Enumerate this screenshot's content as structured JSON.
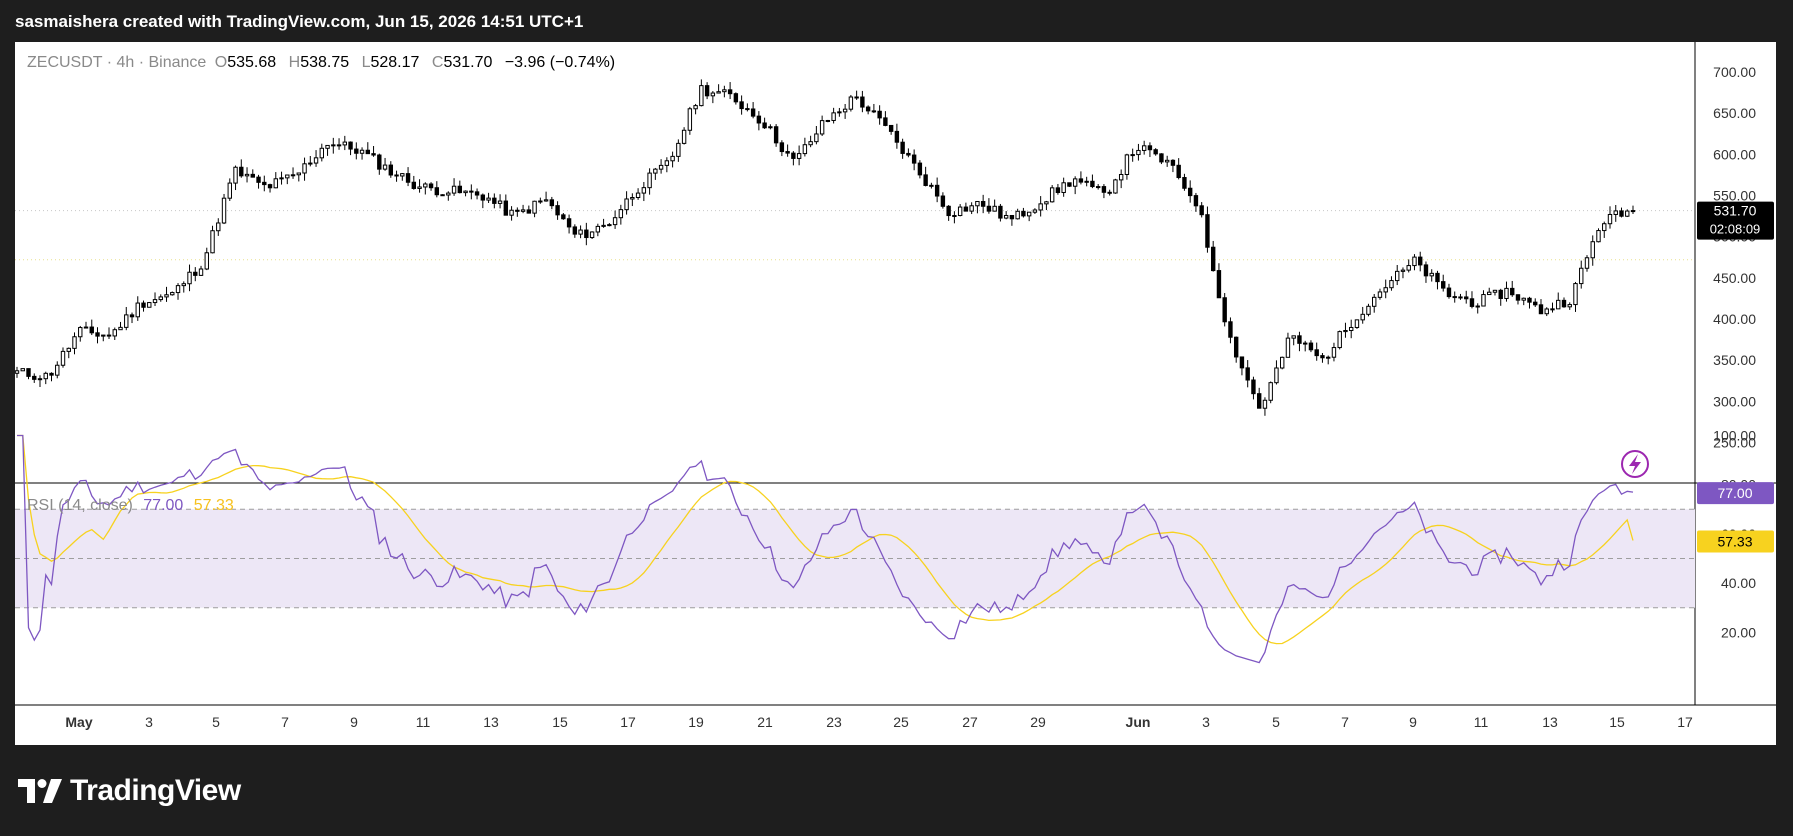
{
  "header": {
    "text": "sasmaishera created with TradingView.com, Jun 15, 2026 14:51 UTC+1"
  },
  "legend": {
    "symbol": "ZECUSDT · 4h · Binance",
    "o_label": "O",
    "o": "535.68",
    "h_label": "H",
    "h": "538.75",
    "l_label": "L",
    "l": "528.17",
    "c_label": "C",
    "c": "531.70",
    "change": "−3.96 (−0.74%)"
  },
  "price_scale": {
    "ticks": [
      "700.00",
      "650.00",
      "600.00",
      "550.00",
      "500.00",
      "450.00",
      "400.00",
      "350.00",
      "300.00",
      "250.00"
    ],
    "last_price": "531.70",
    "countdown": "02:08:09"
  },
  "rsi": {
    "label": "RSI (14, close)",
    "value": "77.00",
    "ma_value": "57.33",
    "ticks": [
      "100.00",
      "80.00",
      "60.00",
      "40.00",
      "20.00"
    ]
  },
  "time_axis": {
    "labels": [
      "May",
      "3",
      "5",
      "7",
      "9",
      "11",
      "13",
      "15",
      "17",
      "19",
      "21",
      "23",
      "25",
      "27",
      "29",
      "Jun",
      "3",
      "5",
      "7",
      "9",
      "11",
      "13",
      "15",
      "17"
    ]
  },
  "footer": {
    "brand": "TradingView"
  },
  "colors": {
    "rsi_line": "#7e57c2",
    "rsi_ma": "#f7d21f",
    "rsi_band": "#ede7f6",
    "last_price_bg": "#000000",
    "candle": "#000000",
    "overbought_fill": "#66bb6a",
    "oversold_fill": "#ef5350"
  },
  "chart_data": {
    "type": "candlestick",
    "symbol": "ZECUSDT",
    "interval": "4h",
    "exchange": "Binance",
    "ylim": [
      230,
      730
    ],
    "close_path": [
      [
        "Apr 30",
        335
      ],
      [
        "May 1",
        330
      ],
      [
        "May 2",
        385
      ],
      [
        "May 3",
        380
      ],
      [
        "May 4",
        420
      ],
      [
        "May 5",
        430
      ],
      [
        "May 6",
        470
      ],
      [
        "May 6.5",
        580
      ],
      [
        "May 7",
        560
      ],
      [
        "May 8",
        575
      ],
      [
        "May 9",
        615
      ],
      [
        "May 10",
        605
      ],
      [
        "May 11",
        580
      ],
      [
        "May 12",
        560
      ],
      [
        "May 13",
        555
      ],
      [
        "May 14",
        550
      ],
      [
        "May 15",
        525
      ],
      [
        "May 16",
        545
      ],
      [
        "May 17",
        500
      ],
      [
        "May 18",
        515
      ],
      [
        "May 19",
        560
      ],
      [
        "May 20",
        590
      ],
      [
        "May 20.5",
        680
      ],
      [
        "May 21",
        670
      ],
      [
        "May 22",
        640
      ],
      [
        "May 23",
        590
      ],
      [
        "May 24",
        640
      ],
      [
        "May 25",
        670
      ],
      [
        "May 26",
        630
      ],
      [
        "May 27",
        580
      ],
      [
        "May 28",
        530
      ],
      [
        "May 29",
        540
      ],
      [
        "May 30",
        520
      ],
      [
        "May 31",
        545
      ],
      [
        "Jun 1",
        570
      ],
      [
        "Jun 2",
        550
      ],
      [
        "Jun 3",
        610
      ],
      [
        "Jun 4",
        590
      ],
      [
        "Jun 4.5",
        540
      ],
      [
        "Jun 5",
        380
      ],
      [
        "Jun 5.3",
        290
      ],
      [
        "Jun 5.7",
        380
      ],
      [
        "Jun 6",
        350
      ],
      [
        "Jun 7",
        400
      ],
      [
        "Jun 8",
        440
      ],
      [
        "Jun 9",
        470
      ],
      [
        "Jun 10",
        430
      ],
      [
        "Jun 11",
        420
      ],
      [
        "Jun 12",
        435
      ],
      [
        "Jun 13",
        410
      ],
      [
        "Jun 14",
        425
      ],
      [
        "Jun 15",
        520
      ],
      [
        "Jun 15.5",
        531.7
      ]
    ],
    "rsi_series": {
      "name": "RSI (14, close)",
      "bands": [
        30,
        50,
        70
      ],
      "last": 77.0,
      "ma_last": 57.33
    }
  }
}
